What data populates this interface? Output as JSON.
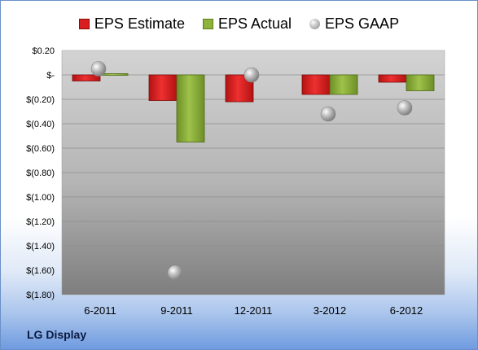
{
  "company_label": "LG Display",
  "colors": {
    "estimate": "#d81e1e",
    "actual": "#8db33a",
    "gaap": "#b8b8b8"
  },
  "chart_data": {
    "type": "bar",
    "categories": [
      "6-2011",
      "9-2011",
      "12-2011",
      "3-2012",
      "6-2012"
    ],
    "series": [
      {
        "name": "EPS Estimate",
        "kind": "bar",
        "values": [
          -0.05,
          -0.21,
          -0.22,
          -0.16,
          -0.06
        ]
      },
      {
        "name": "EPS Actual",
        "kind": "bar",
        "values": [
          0.01,
          -0.55,
          null,
          -0.16,
          -0.13
        ]
      },
      {
        "name": "EPS GAAP",
        "kind": "scatter",
        "values": [
          0.05,
          -1.62,
          0.0,
          -0.32,
          -0.27
        ]
      }
    ],
    "yticks": [
      "$0.20",
      "$-",
      "$(0.20)",
      "$(0.40)",
      "$(0.60)",
      "$(0.80)",
      "$(1.00)",
      "$(1.20)",
      "$(1.40)",
      "$(1.60)",
      "$(1.80)"
    ],
    "ylim": [
      -1.8,
      0.2
    ],
    "grid": true,
    "legend_position": "top"
  }
}
